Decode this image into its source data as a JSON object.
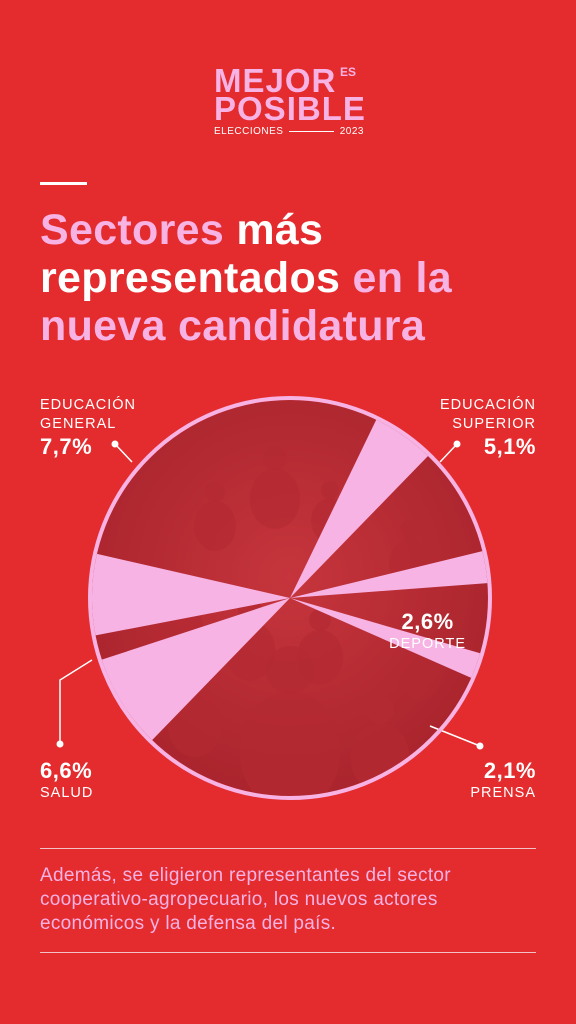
{
  "logo": {
    "line1": "MEJOR",
    "es": "ES",
    "line2": "POSIBLE",
    "sub_left": "ELECCIONES",
    "sub_right": "2023"
  },
  "title": {
    "part1": "Sectores",
    "part2": "más",
    "part3": "representados",
    "part4": "en la",
    "part5": "nueva candidatura"
  },
  "colors": {
    "background": "#e42b2e",
    "accent_pink": "#f6b3e4",
    "text": "#ffffff"
  },
  "chart_data": {
    "type": "pie",
    "title": "",
    "slices": [
      {
        "label": "EDUCACIÓN\nGENERAL",
        "value": 7.7,
        "value_label": "7,7%"
      },
      {
        "label": "EDUCACIÓN\nSUPERIOR",
        "value": 5.1,
        "value_label": "5,1%"
      },
      {
        "label": "DEPORTE",
        "value": 2.6,
        "value_label": "2,6%"
      },
      {
        "label": "PRENSA",
        "value": 2.1,
        "value_label": "2,1%"
      },
      {
        "label": "SALUD",
        "value": 6.6,
        "value_label": "6,6%"
      }
    ]
  },
  "footer": {
    "note": "Además, se eligieron representantes del sector cooperativo-agropecuario, los nuevos actores económicos y la defensa del país."
  }
}
